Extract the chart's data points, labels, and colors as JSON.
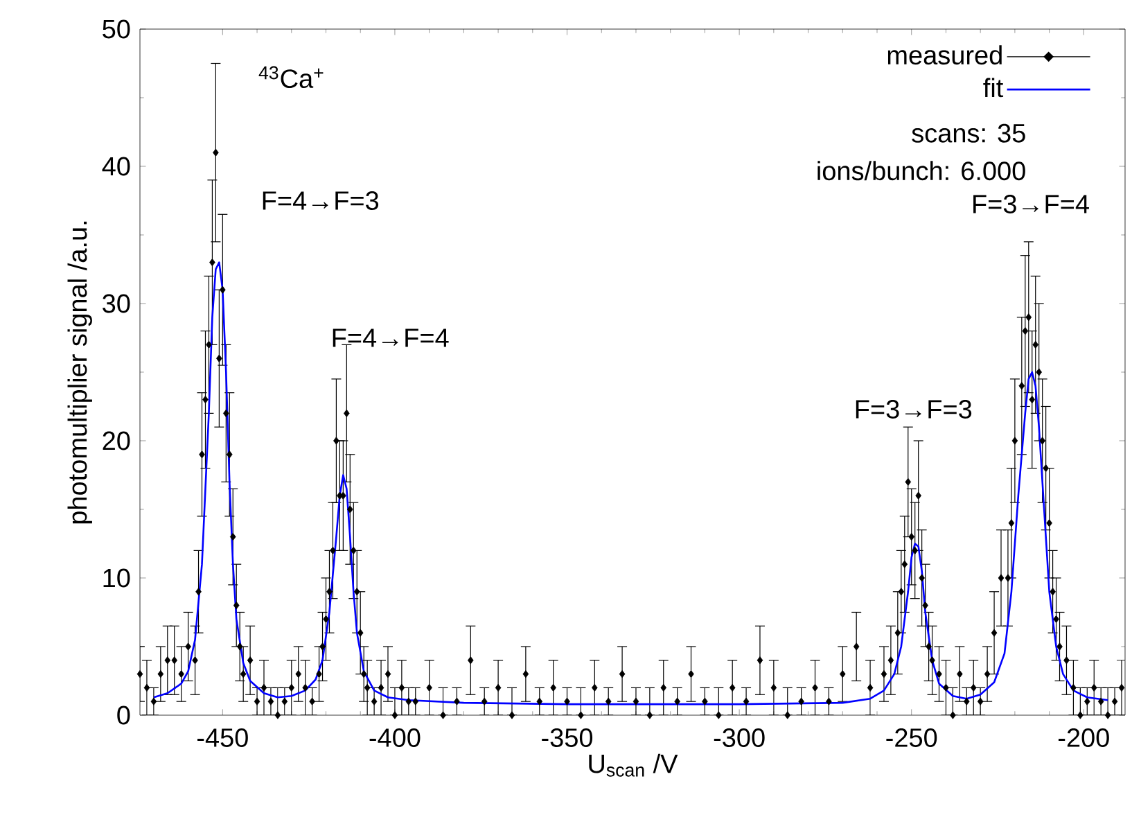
{
  "chart_data": {
    "type": "scatter",
    "xlabel": "U$_{scan}$ /V",
    "ylabel": "photomultiplier signal /a.u.",
    "xlim": [
      -474,
      -188
    ],
    "ylim": [
      0,
      50
    ],
    "xticks": [
      -450,
      -400,
      -350,
      -300,
      -250,
      -200
    ],
    "yticks": [
      0,
      10,
      20,
      30,
      40,
      50
    ],
    "legend": "top right",
    "series": [
      {
        "name": "measured",
        "color": "#000000",
        "marker": "diamond",
        "x": [
          -474,
          -472,
          -470,
          -468,
          -466,
          -464,
          -462,
          -460,
          -458,
          -457,
          -456,
          -455,
          -454,
          -453,
          -452,
          -451,
          -450,
          -449,
          -448,
          -447,
          -446,
          -445,
          -444,
          -442,
          -440,
          -438,
          -436,
          -434,
          -432,
          -430,
          -428,
          -426,
          -424,
          -422,
          -421,
          -420,
          -419,
          -418,
          -417,
          -416,
          -415,
          -414,
          -413,
          -412,
          -411,
          -410,
          -409,
          -408,
          -406,
          -404,
          -402,
          -400,
          -398,
          -396,
          -394,
          -390,
          -386,
          -382,
          -378,
          -374,
          -370,
          -366,
          -362,
          -358,
          -354,
          -350,
          -346,
          -342,
          -338,
          -334,
          -330,
          -326,
          -322,
          -318,
          -314,
          -310,
          -306,
          -302,
          -298,
          -294,
          -290,
          -286,
          -282,
          -278,
          -274,
          -270,
          -266,
          -262,
          -258,
          -256,
          -254,
          -253,
          -252,
          -251,
          -250,
          -249,
          -248,
          -247,
          -246,
          -245,
          -244,
          -242,
          -240,
          -238,
          -236,
          -234,
          -232,
          -230,
          -228,
          -226,
          -224,
          -222,
          -221,
          -220,
          -218,
          -217,
          -216,
          -215,
          -214,
          -213,
          -212,
          -211,
          -210,
          -209,
          -208,
          -207,
          -205,
          -203,
          -201,
          -199,
          -197,
          -195,
          -193,
          -191,
          -189
        ],
        "values": [
          3,
          2,
          1,
          3,
          4,
          4,
          3,
          5,
          4,
          9,
          19,
          23,
          27,
          33,
          41,
          26,
          31,
          22,
          19,
          13,
          8,
          5,
          3,
          4,
          1,
          2,
          1,
          0,
          1,
          2,
          3,
          2,
          1,
          3,
          5,
          7,
          9,
          12,
          20,
          16,
          16,
          22,
          15,
          12,
          9,
          6,
          3,
          2,
          1,
          2,
          3,
          0,
          2,
          1,
          1,
          2,
          0,
          1,
          4,
          1,
          2,
          0,
          3,
          1,
          2,
          1,
          0,
          2,
          1,
          3,
          1,
          0,
          2,
          1,
          3,
          1,
          0,
          2,
          1,
          4,
          2,
          0,
          1,
          2,
          1,
          3,
          5,
          2,
          3,
          4,
          6,
          9,
          11,
          17,
          13,
          12,
          16,
          10,
          8,
          5,
          4,
          3,
          2,
          0,
          3,
          1,
          2,
          1,
          3,
          6,
          10,
          10,
          14,
          20,
          24,
          28,
          29,
          23,
          27,
          25,
          20,
          18,
          14,
          9,
          7,
          5,
          4,
          2,
          0,
          1,
          2,
          1,
          0,
          1,
          2
        ],
        "errors": [
          2,
          2,
          1,
          2,
          2.5,
          2.5,
          2,
          2.5,
          2.5,
          3,
          4.5,
          5,
          5,
          6,
          6.5,
          5,
          5.5,
          5,
          4.5,
          3.5,
          3,
          2.5,
          2,
          2.5,
          1,
          2,
          1,
          [
            0,
            2
          ],
          1,
          2,
          2,
          2,
          1,
          2,
          2.5,
          3,
          3,
          3.5,
          4.5,
          4,
          4,
          5,
          4,
          3.5,
          3,
          3,
          2,
          2,
          1,
          2,
          2,
          [
            0,
            2
          ],
          2,
          1,
          1,
          2,
          [
            0,
            2
          ],
          1,
          2.5,
          1,
          2,
          [
            0,
            2
          ],
          2,
          1,
          2,
          1,
          [
            0,
            2
          ],
          2,
          1,
          2,
          1,
          [
            0,
            2
          ],
          2,
          1,
          2,
          1,
          [
            0,
            2
          ],
          2,
          1,
          2.5,
          2,
          [
            0,
            2
          ],
          1,
          2,
          1,
          2,
          2.5,
          2,
          2,
          2.5,
          3,
          3,
          3.5,
          4,
          3.5,
          3.5,
          4,
          3.5,
          3,
          2.5,
          2.5,
          2,
          2,
          [
            0,
            2
          ],
          2,
          1,
          2,
          1,
          2,
          3,
          3.5,
          3.5,
          4,
          4.5,
          5,
          5.5,
          5.5,
          5,
          5,
          5,
          4.5,
          4.5,
          4,
          3,
          3,
          2.5,
          2.5,
          2,
          [
            0,
            2
          ],
          1,
          2,
          1,
          [
            0,
            2
          ],
          1,
          2
        ]
      },
      {
        "name": "fit",
        "type": "line",
        "color": "#0000ff",
        "line_style": "solid",
        "x": [
          -470,
          -466,
          -462,
          -460,
          -458,
          -456,
          -454,
          -453,
          -452,
          -451,
          -450,
          -449,
          -448,
          -447,
          -446,
          -444,
          -442,
          -438,
          -434,
          -430,
          -426,
          -423,
          -421,
          -419,
          -417,
          -416,
          -415,
          -414,
          -413,
          -412,
          -411,
          -409,
          -406,
          -402,
          -396,
          -380,
          -350,
          -300,
          -270,
          -262,
          -258,
          -255,
          -253,
          -251,
          -250,
          -249,
          -248,
          -247,
          -246,
          -244,
          -242,
          -238,
          -234,
          -230,
          -226,
          -223,
          -221,
          -219,
          -217,
          -216,
          -215,
          -214,
          -213,
          -212,
          -210,
          -208,
          -206,
          -203,
          -199,
          -193
        ],
        "values": [
          1.3,
          1.6,
          2.3,
          3.2,
          5.5,
          11,
          22,
          29,
          32.5,
          33,
          31,
          25,
          17,
          11,
          7,
          3.8,
          2.5,
          1.6,
          1.3,
          1.4,
          1.8,
          2.6,
          4,
          7.5,
          13,
          16,
          17.5,
          16.5,
          13,
          9,
          6,
          3.2,
          1.8,
          1.3,
          1.1,
          0.9,
          0.8,
          0.8,
          0.9,
          1.2,
          1.8,
          3,
          5,
          9,
          11.5,
          12.5,
          12.3,
          10.5,
          7.5,
          4,
          2.3,
          1.4,
          1.2,
          1.5,
          2.4,
          4.5,
          9,
          16,
          22,
          24.5,
          25,
          24,
          21,
          17,
          9,
          5,
          3,
          1.8,
          1.3,
          1.1
        ]
      }
    ],
    "annotations": [
      "$^{43}$Ca$^{+}$",
      "scans: 35",
      "ions/bunch: 6.000",
      "F=4→F=3",
      "F=4→F=4",
      "F=3→F=3",
      "F=3→F=4"
    ]
  }
}
